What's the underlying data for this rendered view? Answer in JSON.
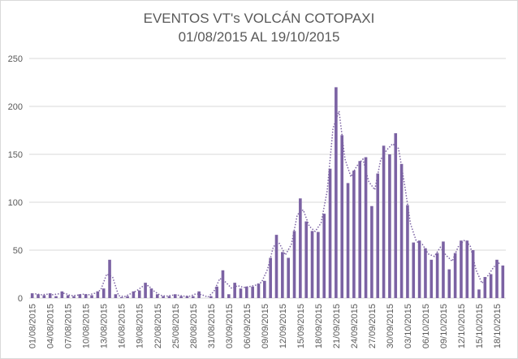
{
  "chart_data": {
    "type": "bar",
    "title": [
      "EVENTOS  VT's  VOLCÁN COTOPAXI",
      "01/08/2015 AL 19/10/2015"
    ],
    "categories": [
      "01/08/2015",
      null,
      null,
      "04/08/2015",
      null,
      null,
      "07/08/2015",
      null,
      null,
      "10/08/2015",
      null,
      null,
      "13/08/2015",
      null,
      null,
      "16/08/2015",
      null,
      null,
      "19/08/2015",
      null,
      null,
      "22/08/2015",
      null,
      null,
      "25/08/2015",
      null,
      null,
      "28/08/2015",
      null,
      null,
      "31/08/2015",
      null,
      null,
      "03/09/2015",
      null,
      null,
      "06/09/2015",
      null,
      null,
      "09/09/2015",
      null,
      null,
      "12/09/2015",
      null,
      null,
      "15/09/2015",
      null,
      null,
      "18/09/2015",
      null,
      null,
      "21/09/2015",
      null,
      null,
      "24/09/2015",
      null,
      null,
      "27/09/2015",
      null,
      null,
      "30/09/2015",
      null,
      null,
      "03/10/2015",
      null,
      null,
      "06/10/2015",
      null,
      null,
      "09/10/2015",
      null,
      null,
      "12/10/2015",
      null,
      null,
      "15/10/2015",
      null,
      null,
      "18/10/2015",
      null
    ],
    "values": [
      5,
      4,
      3,
      5,
      2,
      7,
      3,
      2,
      4,
      4,
      3,
      7,
      10,
      40,
      4,
      1,
      2,
      7,
      8,
      16,
      10,
      4,
      2,
      2,
      4,
      2,
      2,
      2,
      7,
      0,
      2,
      12,
      29,
      4,
      16,
      10,
      12,
      12,
      15,
      18,
      42,
      66,
      48,
      42,
      70,
      104,
      80,
      70,
      69,
      88,
      135,
      220,
      170,
      120,
      133,
      143,
      147,
      96,
      130,
      159,
      150,
      172,
      140,
      97,
      58,
      60,
      52,
      40,
      47,
      59,
      30,
      47,
      60,
      60,
      50,
      9,
      22,
      25,
      40,
      34
    ],
    "color": "#7b62a3",
    "trendline_period": 2,
    "ylim": [
      0,
      250
    ],
    "yticks": [
      0,
      50,
      100,
      150,
      200,
      250
    ],
    "grid": true
  }
}
